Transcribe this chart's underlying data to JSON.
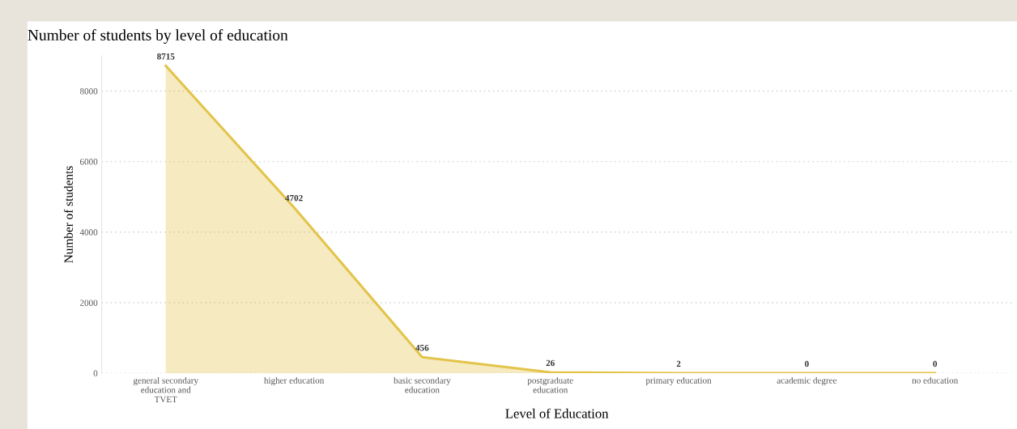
{
  "chart_data": {
    "type": "area",
    "title": "Number of students by level of education",
    "xlabel": "Level of Education",
    "ylabel": "Number of students",
    "categories": [
      "general secondary\neducation and\nTVET",
      "higher education",
      "basic secondary\neducation",
      "postgraduate\neducation",
      "primary education",
      "academic degree",
      "no education"
    ],
    "series": [
      {
        "color": "#e3c44a",
        "values": [
          8715,
          4702,
          456,
          26,
          2,
          0,
          0
        ]
      }
    ],
    "ylim": [
      0,
      9000
    ],
    "yticks": [
      0,
      2000,
      4000,
      6000,
      8000
    ],
    "grid": "y",
    "data_labels": true
  }
}
